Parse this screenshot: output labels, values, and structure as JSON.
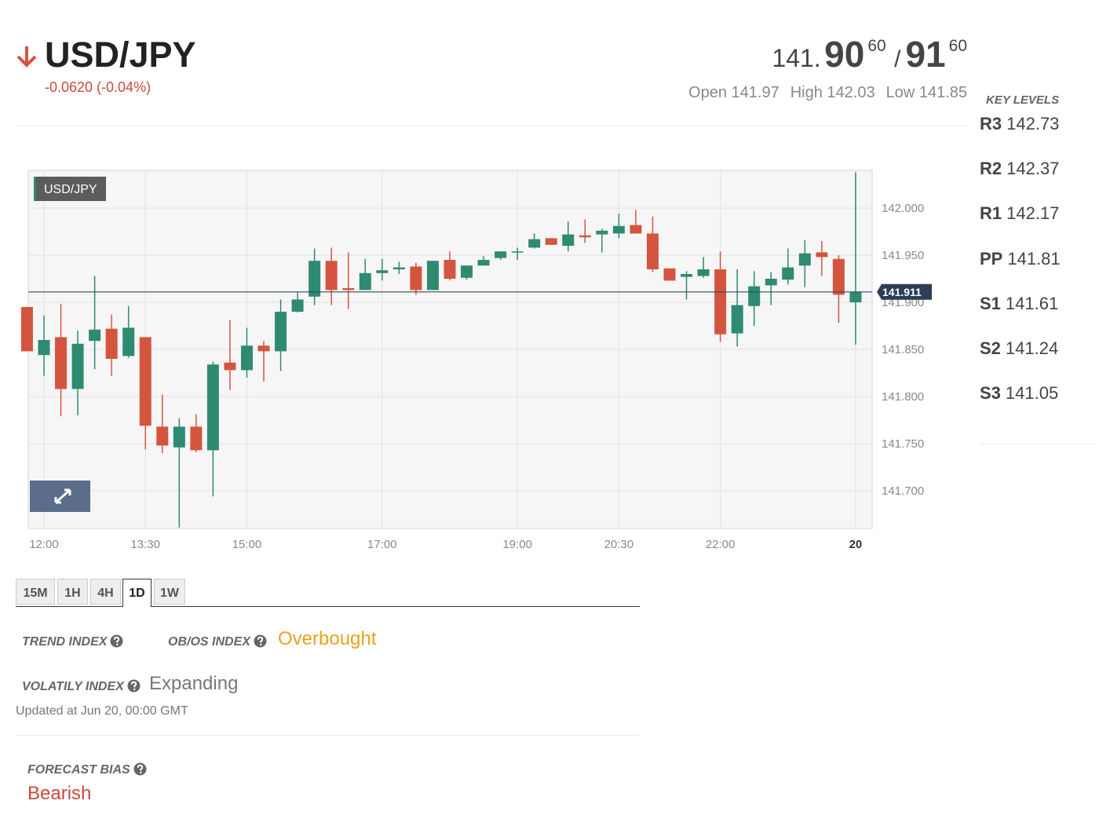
{
  "header": {
    "symbol": "USD/JPY",
    "change": "-0.0620 (-0.04%)"
  },
  "quote": {
    "bid_prefix": "141.",
    "bid_pips": "90",
    "bid_fraction": "60",
    "separator": "/",
    "ask_pips": "91",
    "ask_fraction": "60"
  },
  "stats": [
    {
      "label": "Open",
      "value": 141.97
    },
    {
      "label": "High",
      "value": 142.03
    },
    {
      "label": "Low",
      "value": 141.85
    }
  ],
  "key_levels": {
    "title": "KEY LEVELS",
    "levels": [
      {
        "name": "R3",
        "value": 142.73
      },
      {
        "name": "R2",
        "value": 142.37
      },
      {
        "name": "R1",
        "value": 142.17
      },
      {
        "name": "PP",
        "value": 141.81
      },
      {
        "name": "S1",
        "value": 141.61
      },
      {
        "name": "S2",
        "value": 141.24
      },
      {
        "name": "S3",
        "value": 141.05
      }
    ]
  },
  "chart_data": {
    "type": "candlestick",
    "label": "USD/JPY",
    "categories": [
      null,
      "12:00",
      null,
      null,
      null,
      null,
      null,
      "13:30",
      null,
      null,
      null,
      null,
      null,
      "15:00",
      null,
      null,
      null,
      null,
      null,
      null,
      null,
      "17:00",
      null,
      null,
      null,
      null,
      null,
      null,
      null,
      "19:00",
      null,
      null,
      null,
      null,
      null,
      "20:30",
      null,
      null,
      null,
      null,
      null,
      "22:00",
      null,
      null,
      null,
      null,
      null,
      null,
      null,
      "20"
    ],
    "open": [
      141.895,
      141.844,
      141.863,
      141.808,
      141.859,
      141.872,
      141.843,
      141.863,
      141.768,
      141.746,
      141.768,
      141.743,
      141.836,
      141.828,
      141.854,
      141.848,
      141.89,
      141.906,
      141.944,
      141.915,
      141.913,
      141.931,
      141.935,
      141.938,
      141.913,
      141.945,
      141.926,
      141.939,
      141.947,
      141.954,
      141.958,
      141.968,
      141.96,
      141.971,
      141.972,
      141.973,
      141.982,
      141.973,
      141.936,
      141.927,
      141.928,
      141.935,
      141.867,
      141.896,
      141.918,
      141.924,
      141.939,
      141.953,
      141.946,
      141.9
    ],
    "high": [
      141.895,
      141.886,
      141.898,
      141.87,
      141.928,
      141.887,
      141.896,
      141.863,
      141.802,
      141.777,
      141.781,
      141.837,
      141.881,
      141.873,
      141.859,
      141.903,
      141.911,
      141.957,
      141.958,
      141.953,
      141.946,
      141.946,
      141.943,
      141.942,
      141.944,
      141.954,
      141.939,
      141.949,
      141.954,
      141.958,
      141.973,
      141.968,
      141.986,
      141.988,
      141.978,
      141.994,
      141.998,
      141.991,
      141.936,
      141.933,
      141.948,
      141.954,
      141.935,
      141.933,
      141.932,
      141.957,
      141.966,
      141.965,
      141.95,
      142.038
    ],
    "low": [
      141.848,
      141.822,
      141.779,
      141.78,
      141.829,
      141.822,
      141.841,
      141.744,
      141.74,
      141.661,
      141.741,
      141.694,
      141.807,
      141.82,
      141.816,
      141.827,
      141.889,
      141.897,
      141.897,
      141.893,
      141.913,
      141.923,
      141.93,
      141.908,
      141.913,
      141.923,
      141.924,
      141.939,
      141.945,
      141.945,
      141.957,
      141.961,
      141.954,
      141.963,
      141.953,
      141.968,
      141.973,
      141.932,
      141.923,
      141.903,
      141.926,
      141.858,
      141.853,
      141.875,
      141.897,
      141.919,
      141.916,
      141.928,
      141.878,
      141.855
    ],
    "close": [
      141.848,
      141.86,
      141.808,
      141.856,
      141.871,
      141.84,
      141.873,
      141.769,
      141.748,
      141.768,
      141.743,
      141.834,
      141.828,
      141.854,
      141.848,
      141.89,
      141.903,
      141.944,
      141.913,
      141.913,
      141.931,
      141.934,
      141.937,
      141.913,
      141.944,
      141.925,
      141.939,
      141.945,
      141.954,
      141.954,
      141.967,
      141.961,
      141.972,
      141.969,
      141.976,
      141.981,
      141.973,
      141.935,
      141.923,
      141.93,
      141.935,
      141.866,
      141.897,
      141.917,
      141.925,
      141.937,
      141.952,
      141.948,
      141.908,
      141.911
    ],
    "last_price": 141.911,
    "ylim": [
      141.66,
      142.04
    ],
    "yticks": [
      {
        "value": 141.7,
        "label": "141.700"
      },
      {
        "value": 141.75,
        "label": "141.750"
      },
      {
        "value": 141.8,
        "label": "141.800"
      },
      {
        "value": 141.85,
        "label": "141.850"
      },
      {
        "value": 141.9,
        "label": "141.900"
      },
      {
        "value": 141.95,
        "label": "141.950"
      },
      {
        "value": 142,
        "label": "142.000"
      }
    ],
    "up_color": "#2f8a72",
    "down_color": "#d4553f",
    "grid": true
  },
  "timeframes": {
    "options": [
      "15M",
      "1H",
      "4H",
      "1D",
      "1W"
    ],
    "selected": "1D"
  },
  "indices": {
    "trend": {
      "label": "TREND INDEX"
    },
    "obos": {
      "label": "OB/OS INDEX",
      "value": "Overbought"
    },
    "volatility": {
      "label": "VOLATILY INDEX",
      "value": "Expanding"
    }
  },
  "updated": "Updated at Jun 20, 00:00 GMT",
  "forecast": {
    "label": "FORECAST BIAS",
    "value": "Bearish"
  }
}
